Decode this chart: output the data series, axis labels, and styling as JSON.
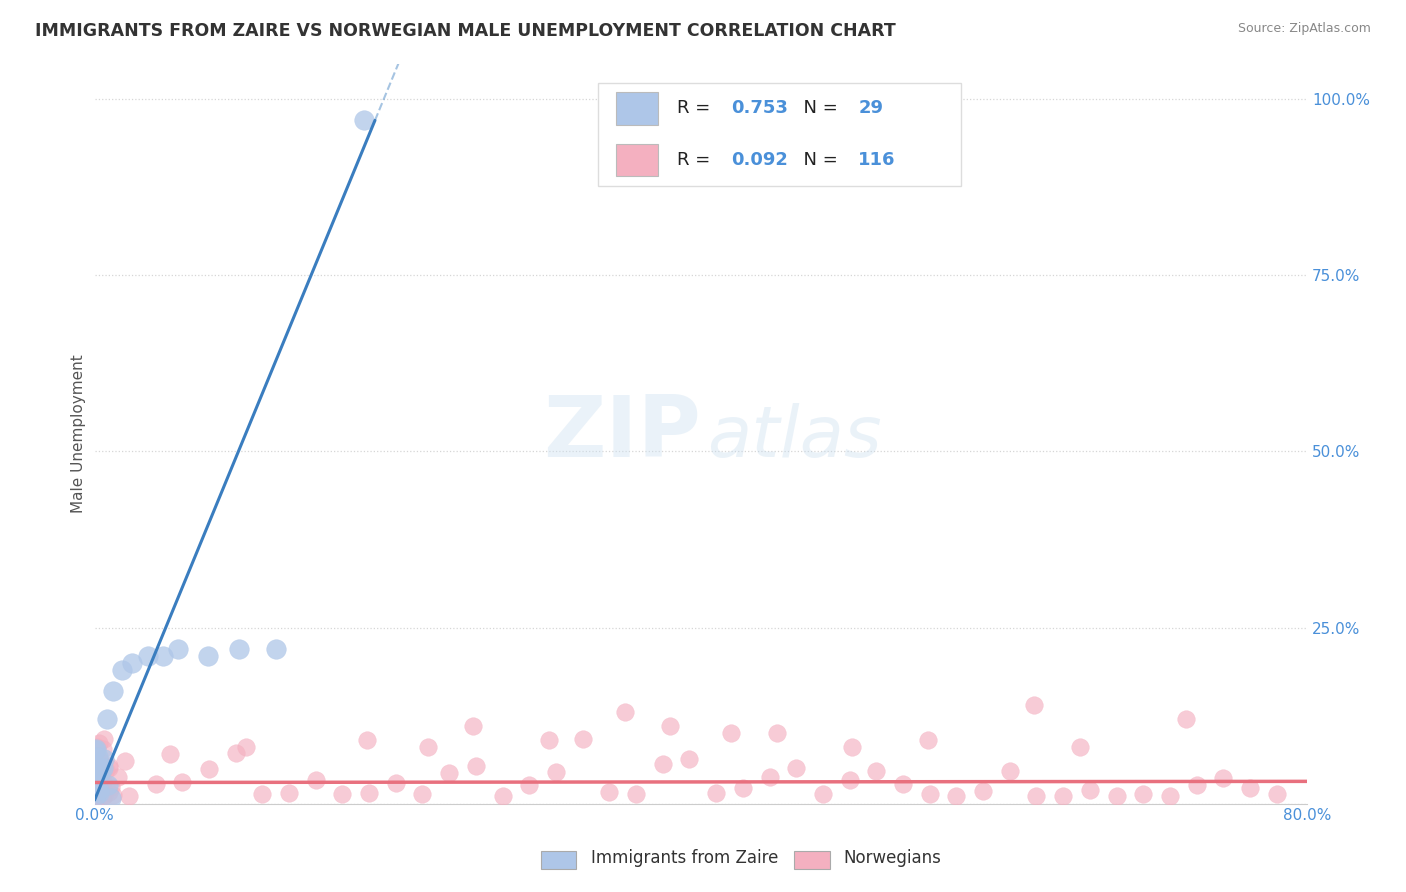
{
  "title": "IMMIGRANTS FROM ZAIRE VS NORWEGIAN MALE UNEMPLOYMENT CORRELATION CHART",
  "source": "Source: ZipAtlas.com",
  "ylabel": "Male Unemployment",
  "legend_label1": "Immigrants from Zaire",
  "legend_label2": "Norwegians",
  "watermark_zip": "ZIP",
  "watermark_atlas": "atlas",
  "background_color": "#ffffff",
  "plot_bg_color": "#ffffff",
  "grid_color": "#cccccc",
  "blue_scatter_color": "#aec6e8",
  "pink_scatter_color": "#f4b0c0",
  "blue_line_color": "#3a7dbf",
  "pink_line_color": "#e8707e",
  "title_color": "#333333",
  "axis_label_color": "#555555",
  "tick_label_color": "#4a90d9",
  "r_value_color": "#4a90d9",
  "legend_r1": "0.753",
  "legend_n1": "29",
  "legend_r2": "0.092",
  "legend_n2": "116"
}
